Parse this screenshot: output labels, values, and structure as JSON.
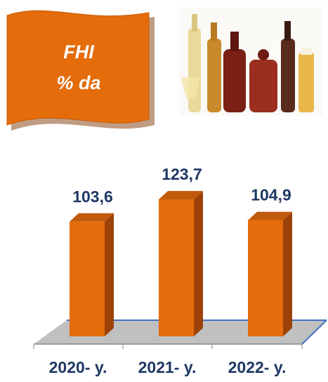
{
  "chart_data": {
    "type": "bar3d",
    "title": [
      "FHI",
      "% da"
    ],
    "categories": [
      "2020- y.",
      "2021- y.",
      "2022- y."
    ],
    "values": [
      103.6,
      123.7,
      104.9
    ],
    "value_labels": [
      "103,6",
      "123,7",
      "104,9"
    ],
    "color": "#e46c0a"
  }
}
